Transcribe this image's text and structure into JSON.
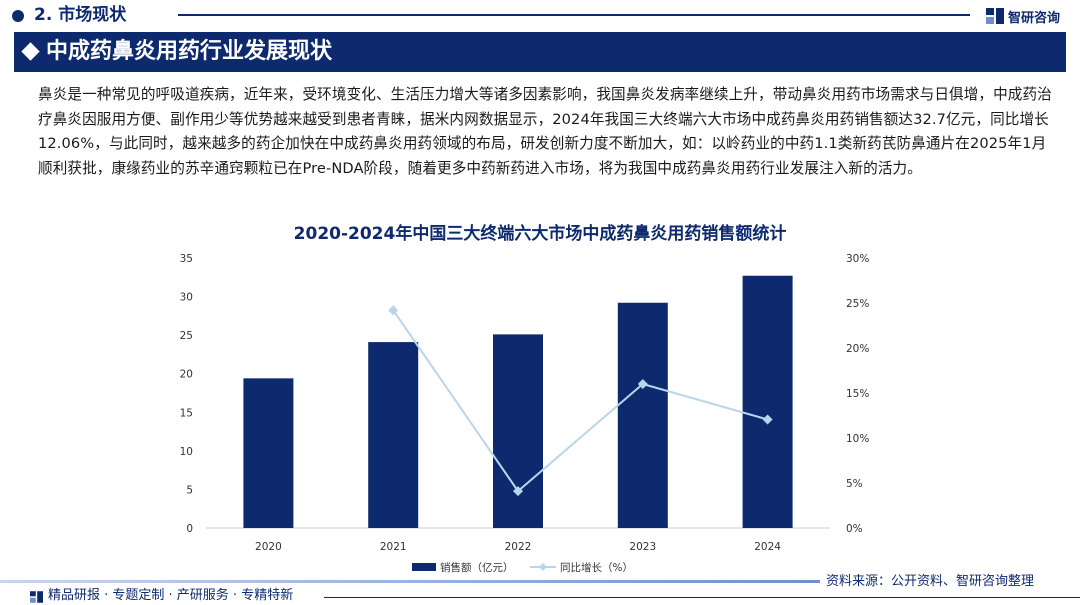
{
  "header": {
    "section_label": "2. 市场现状",
    "brand_name": "智研咨询",
    "page_title": "中成药鼻炎用药行业发展现状"
  },
  "intro_text": "鼻炎是一种常见的呼吸道疾病，近年来，受环境变化、生活压力增大等诸多因素影响，我国鼻炎发病率继续上升，带动鼻炎用药市场需求与日俱增，中成药治疗鼻炎因服用方便、副作用少等优势越来越受到患者青睐，据米内网数据显示，2024年我国三大终端六大市场中成药鼻炎用药销售额达32.7亿元，同比增长12.06%，与此同时，越来越多的药企加快在中成药鼻炎用药领域的布局，研发创新力度不断加大，如：以岭药业的中药1.1类新药芪防鼻通片在2025年1月顺利获批，康缘药业的苏辛通窍颗粒已在Pre-NDA阶段，随着更多中药新药进入市场，将为我国中成药鼻炎用药行业发展注入新的活力。",
  "colors": {
    "brand_navy": "#0e2a6e",
    "bar": "#0e2a6e",
    "line": "#b8d6ea"
  },
  "chart_data": {
    "type": "bar",
    "title": "2020-2024年中国三大终端六大市场中成药鼻炎用药销售额统计",
    "categories": [
      "2020",
      "2021",
      "2022",
      "2023",
      "2024"
    ],
    "series": [
      {
        "name": "销售额（亿元）",
        "type": "bar",
        "axis": "left",
        "values": [
          19.4,
          24.1,
          25.1,
          29.2,
          32.7
        ]
      },
      {
        "name": "同比增长（%）",
        "type": "line",
        "axis": "right",
        "values": [
          null,
          24.2,
          4.1,
          16.0,
          12.06
        ]
      }
    ],
    "y_left": {
      "min": 0,
      "max": 35,
      "ticks": [
        "0",
        "5",
        "10",
        "15",
        "20",
        "25",
        "30",
        "35"
      ]
    },
    "y_right": {
      "min": 0,
      "max": 30,
      "ticks": [
        "0%",
        "5%",
        "10%",
        "15%",
        "20%",
        "25%",
        "30%"
      ]
    },
    "legend_position": "bottom",
    "grid": false
  },
  "source_text": "资料来源：公开资料、智研咨询整理",
  "footer_text": "精品研报 · 专题定制 · 产研服务 · 专精特新"
}
